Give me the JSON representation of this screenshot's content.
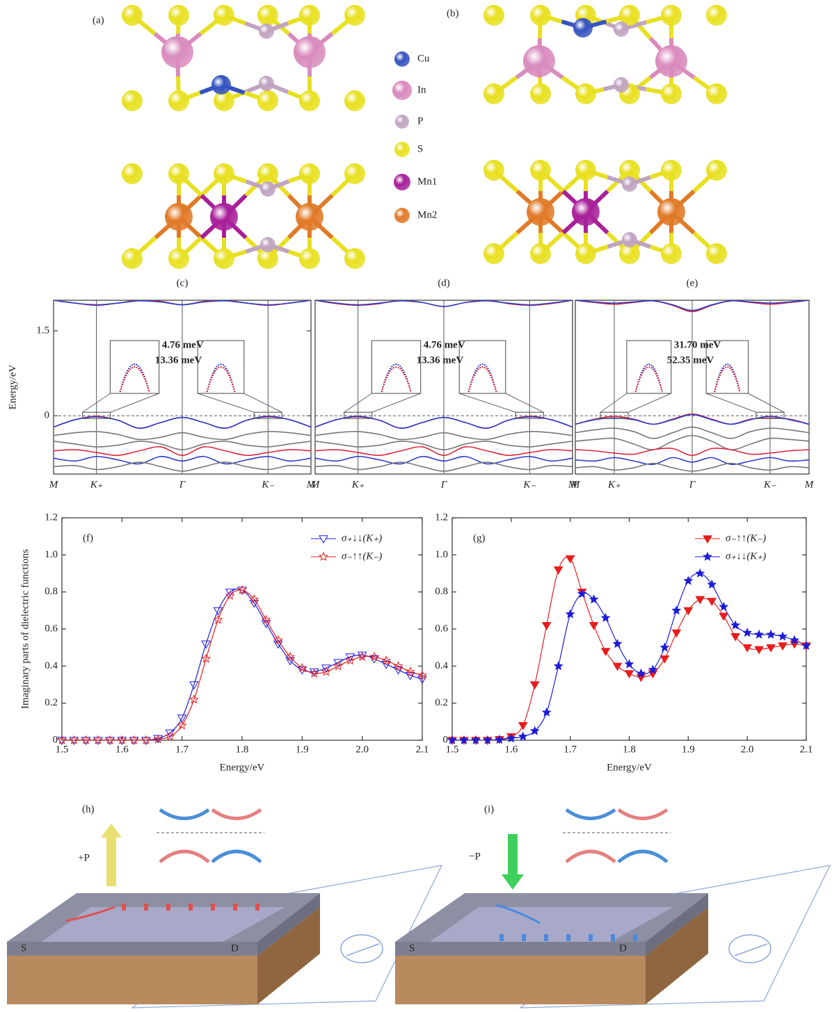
{
  "structure": {
    "panels": [
      "(a)",
      "(b)"
    ],
    "legend": [
      {
        "name": "Cu",
        "color": "#3554c0"
      },
      {
        "name": "In",
        "color": "#d98bbd"
      },
      {
        "name": "P",
        "color": "#c0a4c0"
      },
      {
        "name": "S",
        "color": "#e8e020"
      },
      {
        "name": "Mn1",
        "color": "#a8209a"
      },
      {
        "name": "Mn2",
        "color": "#e07a28"
      }
    ]
  },
  "chart_data": [
    {
      "type": "line",
      "label": "(c)",
      "ylabel": "Energy/eV",
      "categories": [
        "M",
        null,
        "K₊",
        null,
        null,
        null,
        "Γ",
        null,
        null,
        null,
        "K₋",
        null,
        "M"
      ],
      "ylim": [
        -1.03,
        2.04
      ],
      "yticks": [
        0,
        1.5
      ],
      "zero_line": true,
      "annotations": [
        "4.76 meV",
        "13.36 meV"
      ],
      "series": [
        {
          "color": "#d8283a",
          "values": [
            2.04,
            1.99,
            1.95,
            1.99,
            2.04,
            2.02,
            1.96,
            2.02,
            2.04,
            1.99,
            1.95,
            1.99,
            2.04
          ]
        },
        {
          "color": "#2a3ac8",
          "values": [
            2.04,
            1.99,
            1.96,
            1.99,
            2.03,
            2.01,
            1.96,
            2.01,
            2.03,
            1.99,
            1.96,
            1.99,
            2.04
          ]
        },
        {
          "color": "#d8283a",
          "values": [
            -0.2,
            -0.07,
            -0.01,
            -0.08,
            -0.22,
            -0.12,
            -0.03,
            -0.12,
            -0.22,
            -0.08,
            -0.02,
            -0.07,
            -0.2
          ]
        },
        {
          "color": "#2a3ac8",
          "values": [
            -0.2,
            -0.07,
            -0.02,
            -0.08,
            -0.22,
            -0.12,
            -0.03,
            -0.12,
            -0.22,
            -0.08,
            -0.01,
            -0.07,
            -0.2
          ]
        },
        {
          "color": "#777777",
          "values": [
            -0.35,
            -0.3,
            -0.28,
            -0.33,
            -0.42,
            -0.38,
            -0.3,
            -0.38,
            -0.42,
            -0.33,
            -0.28,
            -0.3,
            -0.35
          ]
        },
        {
          "color": "#777777",
          "values": [
            -0.45,
            -0.5,
            -0.55,
            -0.52,
            -0.45,
            -0.5,
            -0.6,
            -0.5,
            -0.45,
            -0.52,
            -0.55,
            -0.5,
            -0.45
          ]
        },
        {
          "color": "#d8283a",
          "values": [
            -0.62,
            -0.6,
            -0.65,
            -0.7,
            -0.62,
            -0.55,
            -0.7,
            -0.55,
            -0.62,
            -0.7,
            -0.65,
            -0.6,
            -0.62
          ]
        },
        {
          "color": "#2a3ac8",
          "values": [
            -0.75,
            -0.8,
            -0.72,
            -0.78,
            -0.85,
            -0.72,
            -0.8,
            -0.72,
            -0.85,
            -0.78,
            -0.72,
            -0.8,
            -0.75
          ]
        },
        {
          "color": "#777777",
          "values": [
            -0.9,
            -0.88,
            -0.95,
            -0.9,
            -0.82,
            -0.9,
            -0.98,
            -0.9,
            -0.82,
            -0.9,
            -0.95,
            -0.88,
            -0.9
          ]
        }
      ]
    },
    {
      "type": "line",
      "label": "(d)",
      "categories": [
        "M",
        null,
        "K₊",
        null,
        null,
        null,
        "Γ",
        null,
        null,
        null,
        "K₋",
        null,
        "M"
      ],
      "ylim": [
        -1.03,
        2.04
      ],
      "zero_line": true,
      "annotations": [
        "4.76 meV",
        "13.36 meV"
      ],
      "series": [
        {
          "color": "#d8283a",
          "values": [
            2.04,
            1.98,
            1.95,
            1.98,
            2.04,
            2.0,
            1.93,
            2.0,
            2.04,
            1.98,
            1.95,
            1.98,
            2.04
          ]
        },
        {
          "color": "#2a3ac8",
          "values": [
            2.04,
            1.99,
            1.96,
            1.99,
            2.03,
            2.0,
            1.93,
            2.0,
            2.03,
            1.99,
            1.96,
            1.99,
            2.04
          ]
        },
        {
          "color": "#d8283a",
          "values": [
            -0.2,
            -0.07,
            -0.02,
            -0.08,
            -0.22,
            -0.12,
            -0.03,
            -0.12,
            -0.22,
            -0.08,
            -0.01,
            -0.07,
            -0.2
          ]
        },
        {
          "color": "#2a3ac8",
          "values": [
            -0.2,
            -0.07,
            -0.01,
            -0.08,
            -0.22,
            -0.12,
            -0.03,
            -0.12,
            -0.22,
            -0.08,
            -0.02,
            -0.07,
            -0.2
          ]
        },
        {
          "color": "#777777",
          "values": [
            -0.35,
            -0.3,
            -0.28,
            -0.33,
            -0.42,
            -0.38,
            -0.3,
            -0.38,
            -0.42,
            -0.33,
            -0.28,
            -0.3,
            -0.35
          ]
        },
        {
          "color": "#777777",
          "values": [
            -0.45,
            -0.5,
            -0.55,
            -0.52,
            -0.45,
            -0.5,
            -0.6,
            -0.5,
            -0.45,
            -0.52,
            -0.55,
            -0.5,
            -0.45
          ]
        },
        {
          "color": "#d8283a",
          "values": [
            -0.62,
            -0.6,
            -0.65,
            -0.7,
            -0.62,
            -0.55,
            -0.7,
            -0.55,
            -0.62,
            -0.7,
            -0.65,
            -0.6,
            -0.62
          ]
        },
        {
          "color": "#2a3ac8",
          "values": [
            -0.75,
            -0.8,
            -0.72,
            -0.78,
            -0.85,
            -0.72,
            -0.8,
            -0.72,
            -0.85,
            -0.78,
            -0.72,
            -0.8,
            -0.75
          ]
        },
        {
          "color": "#777777",
          "values": [
            -0.9,
            -0.88,
            -0.95,
            -0.9,
            -0.82,
            -0.9,
            -0.98,
            -0.9,
            -0.82,
            -0.9,
            -0.95,
            -0.88,
            -0.9
          ]
        }
      ]
    },
    {
      "type": "line",
      "label": "(e)",
      "categories": [
        "M",
        null,
        "K₊",
        null,
        null,
        null,
        "Γ",
        null,
        null,
        null,
        "K₋",
        null,
        "M"
      ],
      "ylim": [
        -1.03,
        2.04
      ],
      "zero_line": true,
      "annotations": [
        "31.70 meV",
        "52.35 meV"
      ],
      "series": [
        {
          "color": "#d8283a",
          "values": [
            2.04,
            2.0,
            1.97,
            2.0,
            2.03,
            1.95,
            1.84,
            1.95,
            2.03,
            2.0,
            1.97,
            2.0,
            2.04
          ]
        },
        {
          "color": "#2a3ac8",
          "values": [
            2.04,
            2.01,
            1.99,
            2.01,
            2.03,
            1.96,
            1.86,
            1.96,
            2.03,
            2.01,
            1.99,
            2.01,
            2.04
          ]
        },
        {
          "color": "#d8283a",
          "values": [
            -0.15,
            -0.06,
            -0.01,
            -0.06,
            -0.15,
            -0.06,
            0.03,
            -0.06,
            -0.15,
            -0.06,
            -0.04,
            -0.06,
            -0.15
          ]
        },
        {
          "color": "#2a3ac8",
          "values": [
            -0.15,
            -0.07,
            -0.04,
            -0.07,
            -0.15,
            -0.07,
            0.02,
            -0.07,
            -0.15,
            -0.07,
            -0.01,
            -0.07,
            -0.15
          ]
        },
        {
          "color": "#777777",
          "values": [
            -0.3,
            -0.25,
            -0.22,
            -0.28,
            -0.4,
            -0.3,
            -0.2,
            -0.3,
            -0.4,
            -0.28,
            -0.22,
            -0.25,
            -0.3
          ]
        },
        {
          "color": "#777777",
          "values": [
            -0.45,
            -0.42,
            -0.4,
            -0.5,
            -0.6,
            -0.45,
            -0.35,
            -0.45,
            -0.6,
            -0.5,
            -0.4,
            -0.42,
            -0.45
          ]
        },
        {
          "color": "#d8283a",
          "values": [
            -0.6,
            -0.62,
            -0.66,
            -0.68,
            -0.6,
            -0.58,
            -0.7,
            -0.58,
            -0.6,
            -0.68,
            -0.66,
            -0.62,
            -0.6
          ]
        },
        {
          "color": "#2a3ac8",
          "values": [
            -0.78,
            -0.8,
            -0.74,
            -0.8,
            -0.86,
            -0.74,
            -0.82,
            -0.74,
            -0.86,
            -0.8,
            -0.74,
            -0.8,
            -0.78
          ]
        },
        {
          "color": "#777777",
          "values": [
            -0.92,
            -0.9,
            -0.96,
            -0.92,
            -0.84,
            -0.92,
            -0.98,
            -0.92,
            -0.84,
            -0.92,
            -0.96,
            -0.9,
            -0.92
          ]
        }
      ]
    },
    {
      "type": "line",
      "label": "(f)",
      "xlabel": "Energy/eV",
      "ylabel": "Imaginary parts of dielectric functions",
      "x": [
        1.5,
        1.52,
        1.54,
        1.56,
        1.58,
        1.6,
        1.62,
        1.64,
        1.66,
        1.68,
        1.7,
        1.72,
        1.74,
        1.76,
        1.78,
        1.8,
        1.82,
        1.84,
        1.86,
        1.88,
        1.9,
        1.92,
        1.94,
        1.96,
        1.98,
        2.0,
        2.02,
        2.04,
        2.06,
        2.08,
        2.1
      ],
      "xlim": [
        1.5,
        2.1
      ],
      "xticks": [
        1.5,
        1.6,
        1.7,
        1.8,
        1.9,
        {
          "value": 2,
          "label": "2.0"
        },
        2.1
      ],
      "ylim": [
        0,
        1.2
      ],
      "yticks": [
        0,
        0.2,
        0.4,
        0.6,
        0.8,
        {
          "value": 1,
          "label": "1.0"
        },
        1.2
      ],
      "legend": "upper right",
      "series": [
        {
          "name": "σ₊↓↓(K₊)",
          "color": "#1c1cd8",
          "marker": "triangle-down",
          "filled": false,
          "values": [
            0,
            0,
            0,
            0,
            0,
            0,
            0,
            0,
            0.01,
            0.04,
            0.12,
            0.3,
            0.52,
            0.7,
            0.8,
            0.81,
            0.74,
            0.63,
            0.52,
            0.43,
            0.38,
            0.37,
            0.39,
            0.42,
            0.45,
            0.46,
            0.44,
            0.41,
            0.38,
            0.35,
            0.33
          ]
        },
        {
          "name": "σ₋↑↑(K₋)",
          "color": "#e81c1c",
          "marker": "star",
          "filled": false,
          "values": [
            0,
            0,
            0,
            0,
            0,
            0,
            0,
            0,
            0.005,
            0.02,
            0.08,
            0.22,
            0.44,
            0.65,
            0.78,
            0.81,
            0.76,
            0.65,
            0.54,
            0.45,
            0.39,
            0.36,
            0.37,
            0.4,
            0.43,
            0.45,
            0.45,
            0.43,
            0.4,
            0.37,
            0.35
          ]
        }
      ]
    },
    {
      "type": "line",
      "label": "(g)",
      "xlabel": "Energy/eV",
      "x": [
        1.5,
        1.52,
        1.54,
        1.56,
        1.58,
        1.6,
        1.62,
        1.64,
        1.66,
        1.68,
        1.7,
        1.72,
        1.74,
        1.76,
        1.78,
        1.8,
        1.82,
        1.84,
        1.86,
        1.88,
        1.9,
        1.92,
        1.94,
        1.96,
        1.98,
        2.0,
        2.02,
        2.04,
        2.06,
        2.08,
        2.1
      ],
      "xlim": [
        1.5,
        2.1
      ],
      "xticks": [
        1.5,
        1.6,
        1.7,
        1.8,
        1.9,
        {
          "value": 2,
          "label": "2.0"
        },
        2.1
      ],
      "ylim": [
        0,
        1.2
      ],
      "yticks": [
        0,
        0.2,
        0.4,
        0.6,
        0.8,
        {
          "value": 1,
          "label": "1.0"
        },
        1.2
      ],
      "legend": "upper right",
      "series": [
        {
          "name": "σ₋↑↑(K₋)",
          "color": "#e81c1c",
          "marker": "triangle-down",
          "filled": true,
          "values": [
            0,
            0,
            0,
            0,
            0.005,
            0.02,
            0.08,
            0.3,
            0.62,
            0.92,
            0.98,
            0.8,
            0.62,
            0.48,
            0.4,
            0.36,
            0.34,
            0.36,
            0.44,
            0.58,
            0.7,
            0.76,
            0.75,
            0.67,
            0.56,
            0.5,
            0.49,
            0.5,
            0.51,
            0.52,
            0.51
          ]
        },
        {
          "name": "σ₊↓↓(K₊)",
          "color": "#1c1cd8",
          "marker": "star",
          "filled": true,
          "values": [
            0,
            0,
            0,
            0,
            0.003,
            0.01,
            0.02,
            0.05,
            0.15,
            0.4,
            0.68,
            0.79,
            0.76,
            0.66,
            0.52,
            0.41,
            0.36,
            0.38,
            0.5,
            0.7,
            0.86,
            0.9,
            0.84,
            0.72,
            0.62,
            0.58,
            0.57,
            0.57,
            0.56,
            0.54,
            0.51
          ]
        }
      ]
    }
  ],
  "device": {
    "panels": [
      {
        "label": "(h)",
        "polarization": "+P",
        "source": "S",
        "drain": "D"
      },
      {
        "label": "(i)",
        "polarization": "−P",
        "source": "S",
        "drain": "D"
      }
    ]
  }
}
